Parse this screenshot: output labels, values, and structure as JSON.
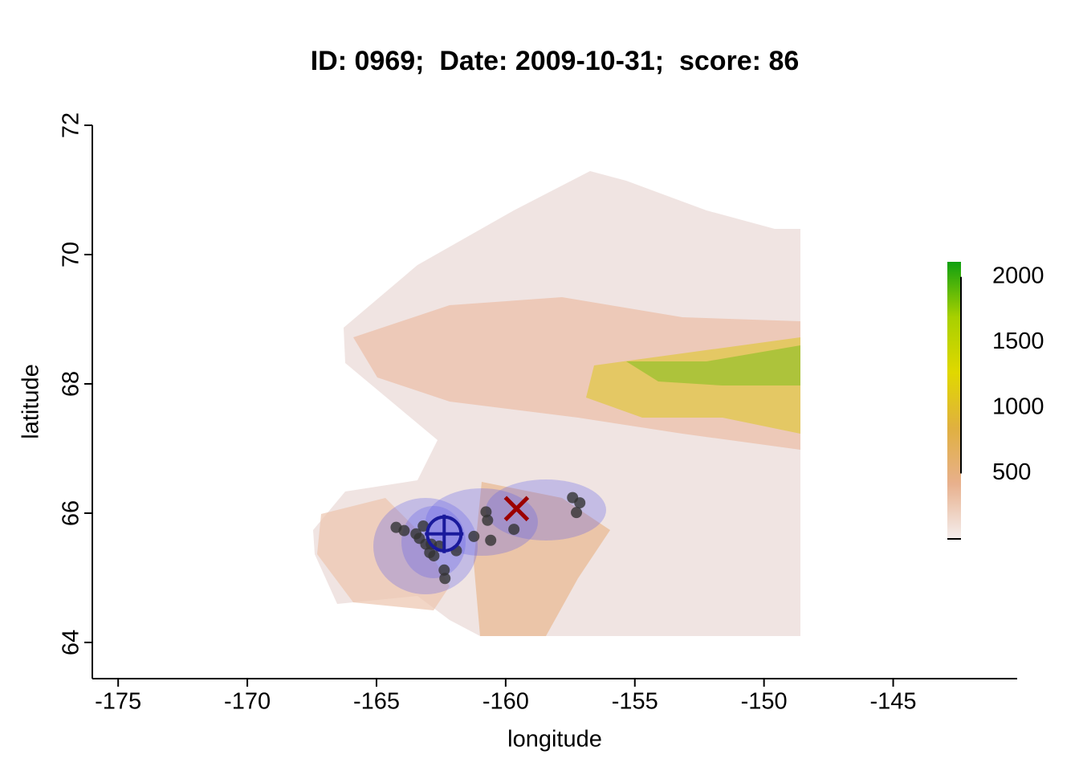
{
  "chart_data": {
    "type": "scatter",
    "title": "ID: 0969;  Date: 2009-10-31;  score: 86",
    "x_label": "longitude",
    "y_label": "latitude",
    "xlim": [
      -176,
      -140.2
    ],
    "ylim": [
      63.44,
      72
    ],
    "xticks": [
      -175,
      -170,
      -165,
      -160,
      -155,
      -150,
      -145
    ],
    "yticks": [
      64,
      66,
      68,
      70,
      72
    ],
    "points": {
      "color": "#333333",
      "x": [
        -164.24,
        -163.93,
        -163.47,
        -163.19,
        -163.34,
        -163.09,
        -162.94,
        -162.78,
        -162.88,
        -162.57,
        -162.38,
        -162.35,
        -161.91,
        -161.23,
        -160.76,
        -160.7,
        -160.58,
        -159.68,
        -157.41,
        -157.13,
        -157.26
      ],
      "y": [
        65.78,
        65.73,
        65.68,
        65.8,
        65.61,
        65.52,
        65.39,
        65.34,
        65.52,
        65.49,
        65.12,
        64.99,
        65.42,
        65.64,
        66.02,
        65.89,
        65.58,
        65.75,
        66.24,
        66.16,
        66.01
      ]
    },
    "estimate": {
      "x": -162.38,
      "y": 65.68,
      "color": "#1a1a9c"
    },
    "reference": {
      "x": -159.58,
      "y": 66.07,
      "color": "#9c0000"
    },
    "colorbar": {
      "lim": [
        0,
        2115
      ],
      "ticks": [
        500,
        1000,
        1500,
        2000
      ],
      "colors": [
        "#f4eeee",
        "#e8b08c",
        "#e0b040",
        "#e0d800",
        "#a8d000",
        "#10a010"
      ]
    }
  }
}
